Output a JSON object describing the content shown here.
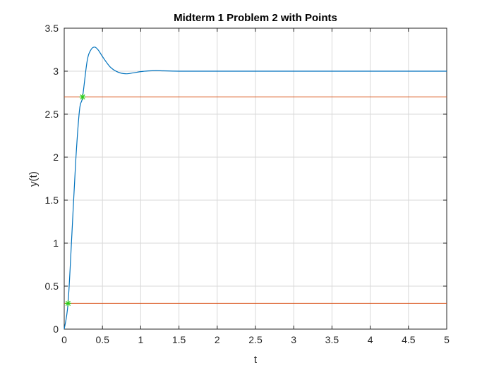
{
  "chart_data": {
    "type": "line",
    "title": "Midterm 1 Problem 2 with Points",
    "xlabel": "t",
    "ylabel": "y(t)",
    "xlim": [
      0,
      5
    ],
    "ylim": [
      0,
      3.5
    ],
    "xticks": [
      0,
      0.5,
      1,
      1.5,
      2,
      2.5,
      3,
      3.5,
      4,
      4.5,
      5
    ],
    "xtick_labels": [
      "0",
      "0.5",
      "1",
      "1.5",
      "2",
      "2.5",
      "3",
      "3.5",
      "4",
      "4.5",
      "5"
    ],
    "yticks": [
      0,
      0.5,
      1,
      1.5,
      2,
      2.5,
      3,
      3.5
    ],
    "ytick_labels": [
      "0",
      "0.5",
      "1",
      "1.5",
      "2",
      "2.5",
      "3",
      "3.5"
    ],
    "grid": true,
    "colors": {
      "response": "#0072bd",
      "reference_lines": "#d95319",
      "markers": "#2ecc16",
      "grid": "#d9d9d9",
      "axes": "#262626"
    },
    "series": [
      {
        "type": "line",
        "x": [
          0,
          0.05,
          0.1,
          0.15,
          0.2,
          0.24,
          0.3,
          0.35,
          0.4,
          0.45,
          0.5,
          0.6,
          0.7,
          0.8,
          0.9,
          1.0,
          1.1,
          1.2,
          1.3,
          1.5,
          2,
          3,
          4,
          5
        ],
        "y": [
          0,
          0.3,
          1.1,
          1.95,
          2.55,
          2.7,
          3.12,
          3.25,
          3.28,
          3.24,
          3.17,
          3.05,
          2.99,
          2.97,
          2.98,
          2.995,
          3.003,
          3.006,
          3.004,
          3.0,
          3.0,
          3.0,
          3.0,
          3.0
        ]
      },
      {
        "type": "hline",
        "y": 2.7,
        "x_range": [
          0,
          5
        ]
      },
      {
        "type": "hline",
        "y": 0.3,
        "x_range": [
          0,
          5
        ]
      },
      {
        "type": "markers",
        "marker": "asterisk",
        "x": [
          0.05,
          0.24
        ],
        "y": [
          0.3,
          2.7
        ]
      }
    ]
  }
}
